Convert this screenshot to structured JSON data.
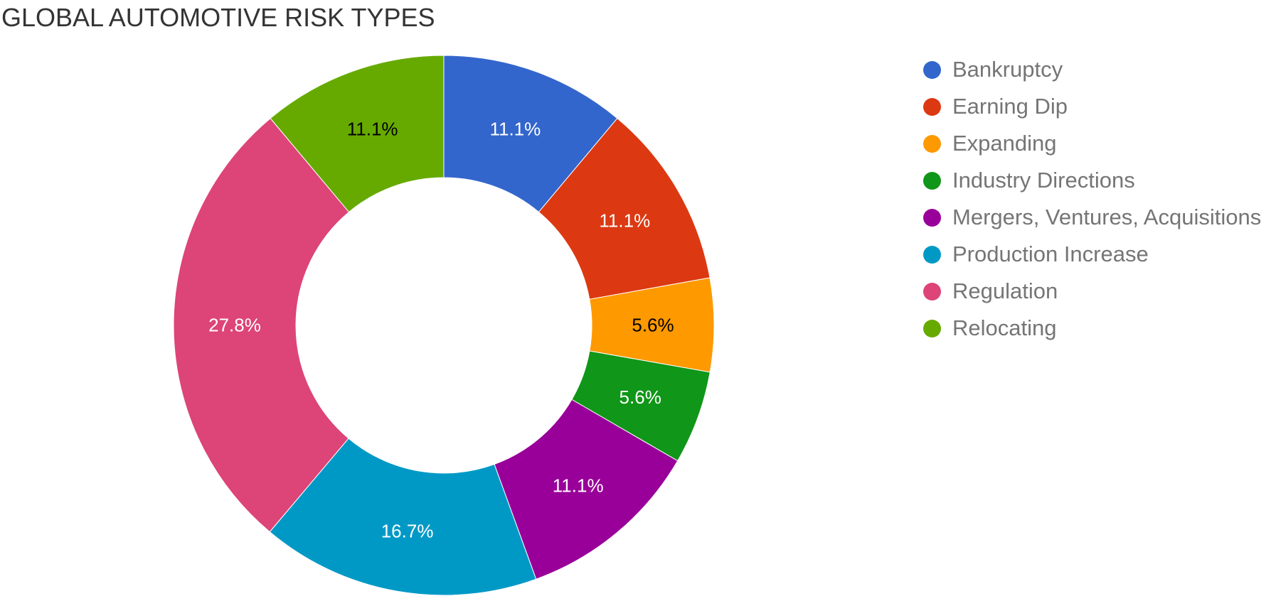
{
  "chart_data": {
    "type": "pie",
    "title": "GLOBAL AUTOMOTIVE RISK TYPES",
    "donut": true,
    "legend_position": "right",
    "slices": [
      {
        "label": "Bankruptcy",
        "value": 11.1,
        "display": "11.1%",
        "color": "#3366cc",
        "text_color": "#ffffff"
      },
      {
        "label": "Earning Dip",
        "value": 11.1,
        "display": "11.1%",
        "color": "#dc3912",
        "text_color": "#ffffff"
      },
      {
        "label": "Expanding",
        "value": 5.6,
        "display": "5.6%",
        "color": "#ff9900",
        "text_color": "#000000"
      },
      {
        "label": "Industry Directions",
        "value": 5.6,
        "display": "5.6%",
        "color": "#109618",
        "text_color": "#ffffff"
      },
      {
        "label": "Mergers, Ventures, Acquisitions",
        "value": 11.1,
        "display": "11.1%",
        "color": "#990099",
        "text_color": "#ffffff"
      },
      {
        "label": "Production Increase",
        "value": 16.7,
        "display": "16.7%",
        "color": "#0099c6",
        "text_color": "#ffffff"
      },
      {
        "label": "Regulation",
        "value": 27.8,
        "display": "27.8%",
        "color": "#dd4477",
        "text_color": "#ffffff"
      },
      {
        "label": "Relocating",
        "value": 11.1,
        "display": "11.1%",
        "color": "#66aa00",
        "text_color": "#000000"
      }
    ]
  }
}
